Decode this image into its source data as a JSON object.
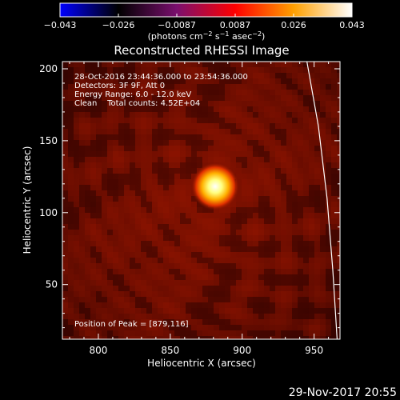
{
  "chart_data": {
    "type": "heatmap",
    "title": "Reconstructed RHESSI Image",
    "colorbar": {
      "ticks": [
        "−0.043",
        "−0.026",
        "−0.0087",
        "0.0087",
        "0.026",
        "0.043"
      ],
      "range": [
        -0.043,
        0.043
      ],
      "unit_prefix": "(photons cm",
      "unit_exp1": "−2",
      "unit_mid": " s",
      "unit_exp2": "−1",
      "unit_mid2": " asec",
      "unit_exp3": "−2",
      "unit_suffix": ")",
      "colormap": [
        "#0000ff",
        "#000000",
        "#7a0f6e",
        "#ff0000",
        "#ffa000",
        "#ffffff"
      ]
    },
    "annotations": [
      "28-Oct-2016 23:44:36.000 to 23:54:36.000",
      "Detectors: 3F 9F, Att 0",
      "Energy Range: 6.0 - 12.0 keV",
      "Clean    Total counts: 4.52E+04"
    ],
    "peak_label": "Position of Peak = [879,116]",
    "peak": {
      "x": 879,
      "y": 116
    },
    "xlabel": "Heliocentric X (arcsec)",
    "ylabel": "Heliocentric Y (arcsec)",
    "xlim": [
      775,
      968
    ],
    "ylim": [
      12,
      205
    ],
    "xticks": [
      "800",
      "850",
      "900",
      "950"
    ],
    "xtick_values": [
      800,
      850,
      900,
      950
    ],
    "yticks": [
      "50",
      "100",
      "150",
      "200"
    ],
    "ytick_values": [
      50,
      100,
      150,
      200
    ],
    "limb_curve": [
      [
        945,
        205
      ],
      [
        953,
        160
      ],
      [
        959,
        110
      ],
      [
        963,
        60
      ],
      [
        966,
        12
      ]
    ]
  },
  "footer": {
    "timestamp": "29-Nov-2017 20:55"
  }
}
